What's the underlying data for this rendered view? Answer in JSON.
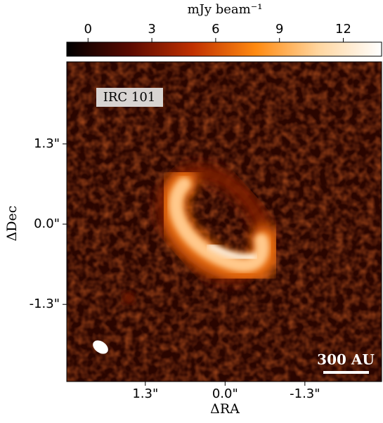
{
  "chart_data": {
    "type": "image",
    "colorbar_label": "mJy beam⁻¹",
    "clim": [
      -1,
      13.8
    ],
    "cticks": [
      0,
      3,
      6,
      9,
      12
    ],
    "colormap": [
      "#000000",
      "#5a0a00",
      "#c03000",
      "#ff8a10",
      "#ffd6a0",
      "#ffffff"
    ],
    "xlabel": "ΔRA",
    "ylabel": "ΔDec",
    "xlim": [
      2.58,
      -2.55
    ],
    "ylim": [
      -2.55,
      2.63
    ],
    "xticks": [
      {
        "value": 1.3,
        "label": "1.3\""
      },
      {
        "value": 0,
        "label": "0.0\""
      },
      {
        "value": -1.3,
        "label": "-1.3\""
      }
    ],
    "yticks": [
      {
        "value": 1.3,
        "label": "1.3\""
      },
      {
        "value": 0,
        "label": "0.0\""
      },
      {
        "value": -1.3,
        "label": "-1.3\""
      }
    ],
    "annotation": "IRC 101",
    "scale_bar_label": "300 AU"
  }
}
